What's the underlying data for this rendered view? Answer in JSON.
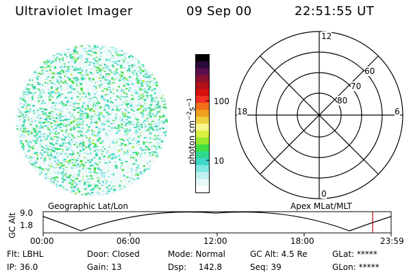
{
  "header": {
    "instrument": "Ultraviolet Imager",
    "date": "09 Sep 00",
    "time": "22:51:55 UT"
  },
  "colorbar": {
    "unit_label": "photon cm",
    "unit_exp1": "−2",
    "unit_mid": "s",
    "unit_exp2": "−1",
    "tick_labels": [
      "100",
      "10"
    ],
    "colors": [
      "#000000",
      "#2a0a3a",
      "#5a0f4a",
      "#8a1030",
      "#b01018",
      "#d81010",
      "#f03020",
      "#f07018",
      "#f0a020",
      "#f0d040",
      "#f8f890",
      "#d8f040",
      "#98e830",
      "#40e040",
      "#30d890",
      "#40d8c8",
      "#80e8e0",
      "#c0f0f0",
      "#e8f8f8",
      "#ffffff"
    ]
  },
  "polar_plot": {
    "mlt_labels": [
      "12",
      "18",
      "6",
      "0"
    ],
    "lat_labels": [
      "60",
      "70",
      "80"
    ]
  },
  "timeline": {
    "left_label": "Geographic Lat/Lon",
    "right_label": "Apex MLat/MLT",
    "axis_title": "GC Alt",
    "y_ticks": [
      "9.0",
      "1.8"
    ],
    "x_ticks": [
      "00:00",
      "06:00",
      "12:00",
      "18:00",
      "23:59"
    ]
  },
  "info": {
    "flt": "Flt: LBHL",
    "ip": "IP: 36.0",
    "door": "Door: Closed",
    "gain": "Gain: 13",
    "mode": "Mode: Normal",
    "dsp_label": "Dsp:",
    "dsp_value": "142.8",
    "gc_alt": "GC Alt: 4.5 Re",
    "seq": "Seq: 39",
    "glat": "GLat: *****",
    "glon": "GLon: *****"
  }
}
